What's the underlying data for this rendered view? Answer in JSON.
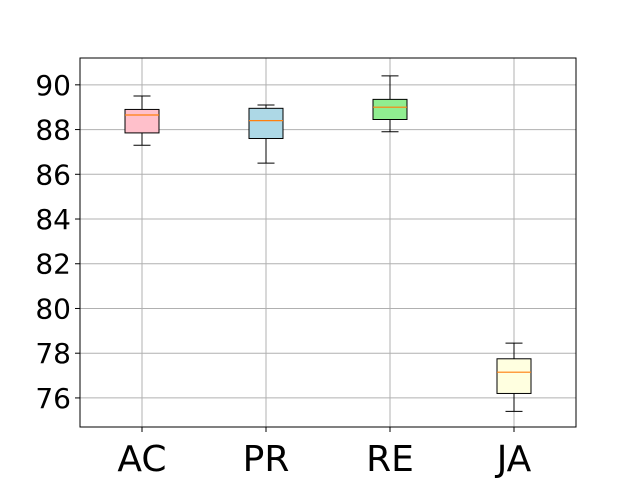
{
  "chart_data": {
    "type": "box",
    "title": "",
    "xlabel": "",
    "ylabel": "",
    "categories": [
      "AC",
      "PR",
      "RE",
      "JA"
    ],
    "ylim": [
      74.7,
      91.2
    ],
    "yticks": [
      76,
      78,
      80,
      82,
      84,
      86,
      88,
      90
    ],
    "ytick_labels": [
      "76",
      "78",
      "80",
      "82",
      "84",
      "86",
      "88",
      "90"
    ],
    "grid": true,
    "boxes": [
      {
        "category": "AC",
        "whisker_low": 87.3,
        "q1": 87.85,
        "median": 88.65,
        "q3": 88.9,
        "whisker_high": 89.5,
        "color": "#ffc0cb"
      },
      {
        "category": "PR",
        "whisker_low": 86.5,
        "q1": 87.6,
        "median": 88.4,
        "q3": 88.95,
        "whisker_high": 89.1,
        "color": "#add8e6"
      },
      {
        "category": "RE",
        "whisker_low": 87.9,
        "q1": 88.45,
        "median": 89.0,
        "q3": 89.35,
        "whisker_high": 90.4,
        "color": "#90ee90"
      },
      {
        "category": "JA",
        "whisker_low": 75.4,
        "q1": 76.2,
        "median": 77.15,
        "q3": 77.75,
        "whisker_high": 78.45,
        "color": "#ffffe0"
      }
    ],
    "median_color": "#ff7f0e",
    "grid_color": "#b0b0b0"
  }
}
